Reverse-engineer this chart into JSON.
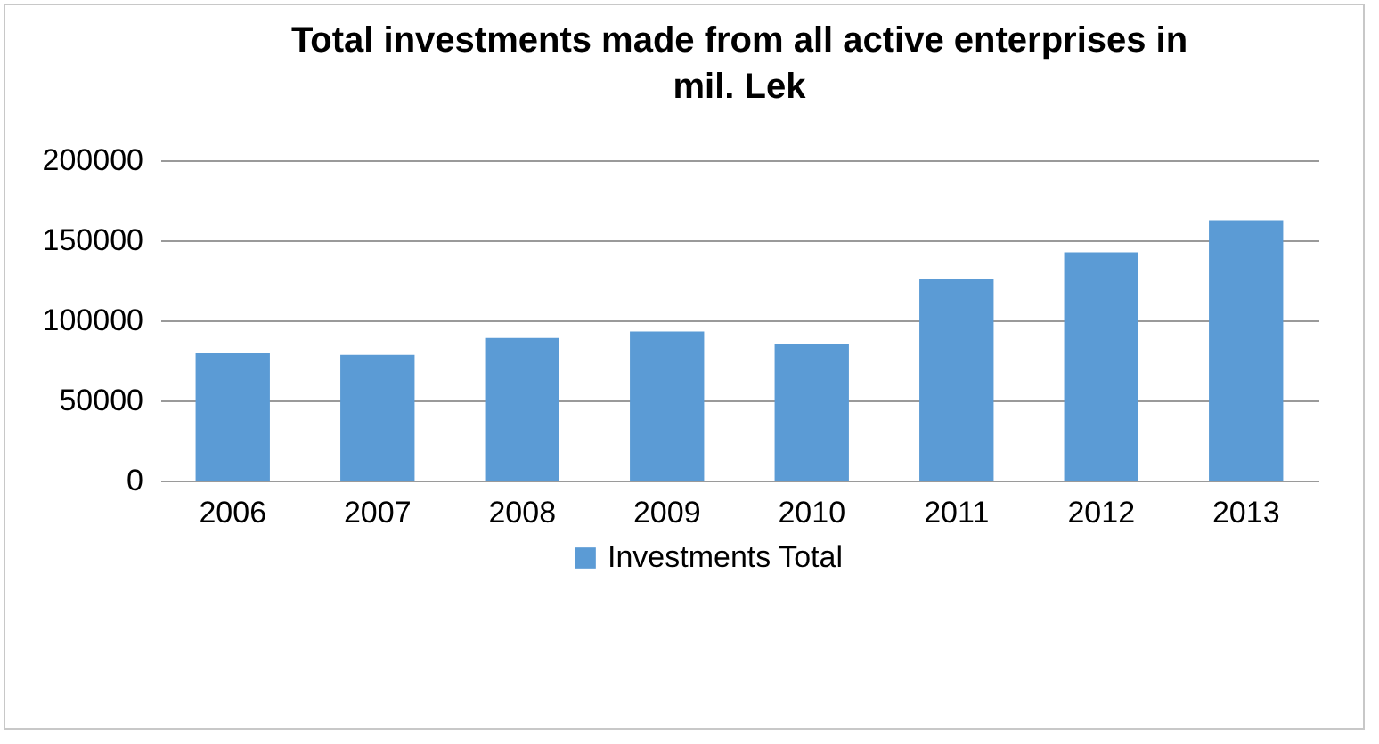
{
  "chart_data": {
    "type": "bar",
    "title": "Total investments made from all active enterprises in mil. Lek",
    "categories": [
      "2006",
      "2007",
      "2008",
      "2009",
      "2010",
      "2011",
      "2012",
      "2013"
    ],
    "series": [
      {
        "name": "Investments Total",
        "color": "#5b9bd5",
        "values": [
          79500,
          78500,
          89000,
          93000,
          85000,
          126000,
          142500,
          162500
        ]
      }
    ],
    "ylim": [
      0,
      200000
    ],
    "yticks": [
      0,
      50000,
      100000,
      150000,
      200000
    ],
    "grid": "y",
    "legend": "bottom"
  }
}
